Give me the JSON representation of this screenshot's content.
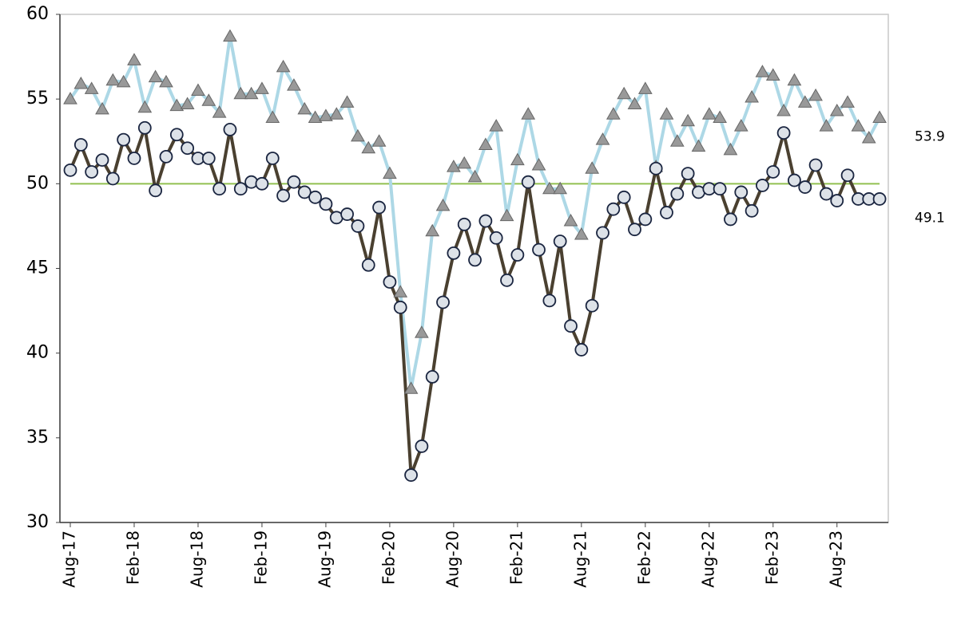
{
  "chart_data": {
    "type": "line",
    "categories": [
      "Aug-17",
      null,
      null,
      null,
      null,
      null,
      "Feb-18",
      null,
      null,
      null,
      null,
      null,
      "Aug-18",
      null,
      null,
      null,
      null,
      null,
      "Feb-19",
      null,
      null,
      null,
      null,
      null,
      "Aug-19",
      null,
      null,
      null,
      null,
      null,
      "Feb-20",
      null,
      null,
      null,
      null,
      null,
      "Aug-20",
      null,
      null,
      null,
      null,
      null,
      "Feb-21",
      null,
      null,
      null,
      null,
      null,
      "Aug-21",
      null,
      null,
      null,
      null,
      null,
      "Feb-22",
      null,
      null,
      null,
      null,
      null,
      "Aug-22",
      null,
      null,
      null,
      null,
      null,
      "Feb-23",
      null,
      null,
      null,
      null,
      null,
      "Aug-23",
      null,
      null,
      null,
      null
    ],
    "series": [
      {
        "color": "#add8e6",
        "marker": "triangle",
        "marker_color": "#999999",
        "values": [
          55.0,
          55.9,
          55.6,
          54.4,
          56.1,
          56.0,
          57.3,
          54.5,
          56.3,
          56.0,
          54.6,
          54.7,
          55.5,
          54.9,
          54.2,
          58.7,
          55.3,
          55.3,
          55.6,
          53.9,
          56.9,
          55.8,
          54.4,
          53.9,
          54.0,
          54.1,
          54.8,
          52.8,
          52.1,
          52.5,
          50.6,
          43.6,
          37.9,
          41.2,
          47.2,
          48.7,
          51.0,
          51.2,
          50.4,
          52.3,
          53.4,
          48.1,
          51.4,
          54.1,
          51.1,
          49.7,
          49.7,
          47.8,
          47.0,
          50.9,
          52.6,
          54.1,
          55.3,
          54.7,
          55.6,
          51.0,
          54.1,
          52.5,
          53.7,
          52.2,
          54.1,
          53.9,
          52.0,
          53.4,
          55.1,
          56.6,
          56.4,
          54.3,
          56.1,
          54.8,
          55.2,
          53.4,
          54.3,
          54.8,
          53.4,
          52.7,
          53.9
        ]
      },
      {
        "color": "#4a4030",
        "marker": "circle",
        "marker_color": "#dde2e8",
        "values": [
          50.8,
          52.3,
          50.7,
          51.4,
          50.3,
          52.6,
          51.5,
          53.3,
          49.6,
          51.6,
          52.9,
          52.1,
          51.5,
          51.5,
          49.7,
          53.2,
          49.7,
          50.1,
          50.0,
          51.5,
          49.3,
          50.1,
          49.5,
          49.2,
          48.8,
          48.0,
          48.2,
          47.5,
          45.2,
          48.6,
          44.2,
          42.7,
          32.8,
          34.5,
          38.6,
          43.0,
          45.9,
          47.6,
          45.5,
          47.8,
          46.8,
          44.3,
          45.8,
          50.1,
          46.1,
          43.1,
          46.6,
          41.6,
          40.2,
          42.8,
          47.1,
          48.5,
          49.2,
          47.3,
          47.9,
          50.9,
          48.3,
          49.4,
          50.6,
          49.5,
          49.7,
          49.7,
          47.9,
          49.5,
          48.4,
          49.9,
          50.7,
          53.0,
          50.2,
          49.8,
          51.1,
          49.4,
          49.0,
          50.5,
          49.1,
          49.1,
          49.1
        ]
      }
    ],
    "hline": {
      "value": 50,
      "color": "#92c050"
    },
    "ylim": [
      30,
      60
    ],
    "yticks": [
      30,
      35,
      40,
      45,
      50,
      55,
      60
    ]
  }
}
